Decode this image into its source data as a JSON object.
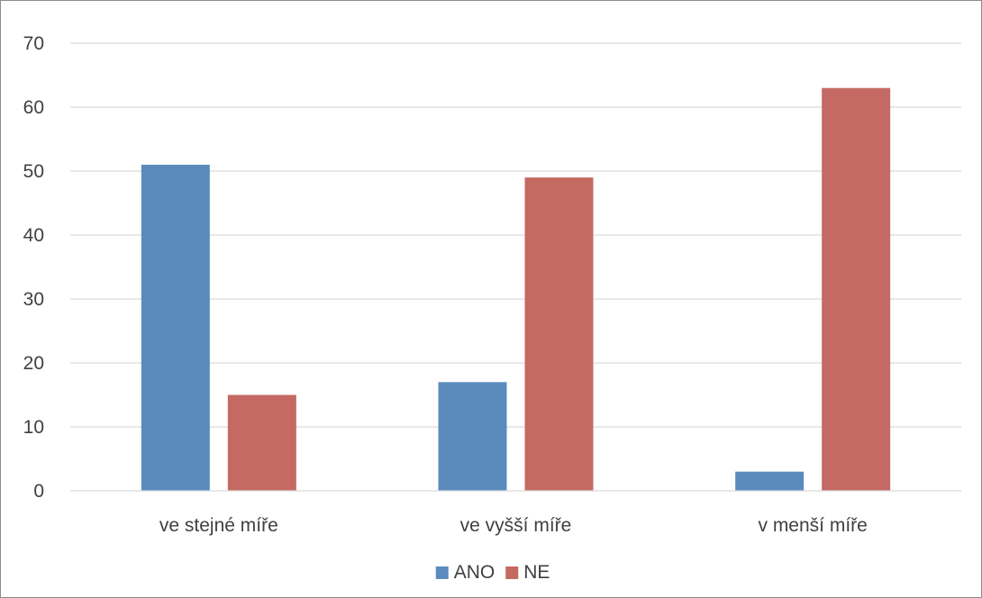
{
  "chart_data": {
    "type": "bar",
    "title": "",
    "xlabel": "",
    "ylabel": "",
    "categories": [
      "ve stejné míře",
      "ve vyšší míře",
      "v menší míře"
    ],
    "series": [
      {
        "name": "ANO",
        "color": "#5b8bbd",
        "values": [
          51,
          17,
          3
        ]
      },
      {
        "name": "NE",
        "color": "#c46a63",
        "values": [
          15,
          49,
          63
        ]
      }
    ],
    "ylim": [
      0,
      70
    ],
    "yticks": [
      0,
      10,
      20,
      30,
      40,
      50,
      60,
      70
    ],
    "grid": true,
    "legend_position": "bottom"
  }
}
